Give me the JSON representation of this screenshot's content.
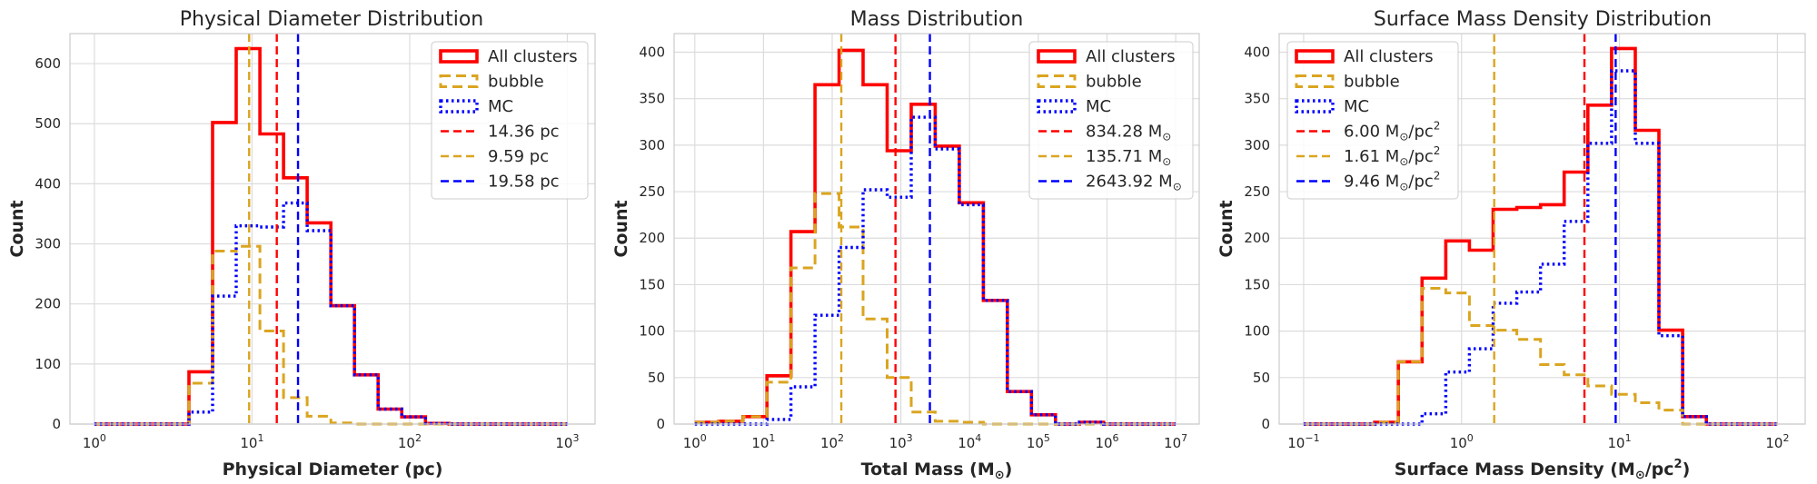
{
  "colors": {
    "all": "#ff0000",
    "bubble": "#daa520",
    "mc": "#0000ff",
    "grid": "#dcdcdc",
    "frame": "#cccccc",
    "text": "#262626"
  },
  "chart_data": [
    {
      "type": "histogram",
      "title": "Physical Diameter Distribution",
      "xlabel": "Physical Diameter (pc)",
      "ylabel": "Count",
      "xscale": "log",
      "xlim": [
        0.7,
        1500
      ],
      "ylim": [
        0,
        650
      ],
      "grid": true,
      "legend_position": "top-right",
      "x_ticks": [
        {
          "base": "10",
          "exp": "0",
          "value": 1
        },
        {
          "base": "10",
          "exp": "1",
          "value": 10
        },
        {
          "base": "10",
          "exp": "2",
          "value": 100
        },
        {
          "base": "10",
          "exp": "3",
          "value": 1000
        }
      ],
      "y_ticks": [
        {
          "label": "0",
          "value": 0
        },
        {
          "label": "100",
          "value": 100
        },
        {
          "label": "200",
          "value": 200
        },
        {
          "label": "300",
          "value": 300
        },
        {
          "label": "400",
          "value": 400
        },
        {
          "label": "500",
          "value": 500
        },
        {
          "label": "600",
          "value": 600
        }
      ],
      "bin_edges": [
        1,
        1.4125,
        1.9953,
        2.8184,
        3.9811,
        5.6234,
        7.9433,
        11.2202,
        15.8489,
        22.3872,
        31.6228,
        44.6684,
        63.0957,
        89.1251,
        125.8925,
        177.8279,
        251.1886,
        354.8134,
        501.1872,
        707.9458,
        1000
      ],
      "series": [
        {
          "name": "All clusters",
          "style": "solid",
          "counts": [
            0,
            0,
            0,
            0,
            87,
            502,
            625,
            483,
            410,
            335,
            197,
            82,
            25,
            12,
            1,
            0,
            0,
            0,
            0,
            0
          ]
        },
        {
          "name": "bubble",
          "style": "dashed",
          "counts": [
            0,
            0,
            0,
            0,
            68,
            288,
            296,
            155,
            44,
            13,
            2,
            0,
            0,
            0,
            0,
            0,
            0,
            0,
            0,
            0
          ]
        },
        {
          "name": "MC",
          "style": "dotted",
          "counts": [
            0,
            0,
            0,
            0,
            20,
            213,
            330,
            328,
            368,
            322,
            197,
            82,
            25,
            12,
            1,
            0,
            0,
            0,
            0,
            0
          ]
        }
      ],
      "vlines": [
        {
          "name": "14.36 pc",
          "value": 14.36,
          "color": "#ff0000"
        },
        {
          "name": "9.59 pc",
          "value": 9.59,
          "color": "#daa520"
        },
        {
          "name": "19.58 pc",
          "value": 19.58,
          "color": "#0000ff"
        }
      ],
      "legend": [
        {
          "kind": "patch",
          "style": "solid",
          "color": "#ff0000",
          "label": "All clusters"
        },
        {
          "kind": "patch",
          "style": "dashed",
          "color": "#daa520",
          "label": "bubble"
        },
        {
          "kind": "patch",
          "style": "dotted",
          "color": "#0000ff",
          "label": "MC"
        },
        {
          "kind": "line",
          "color": "#ff0000",
          "label": "14.36 pc"
        },
        {
          "kind": "line",
          "color": "#daa520",
          "label": "9.59 pc"
        },
        {
          "kind": "line",
          "color": "#0000ff",
          "label": "19.58 pc"
        }
      ]
    },
    {
      "type": "histogram",
      "title": "Mass Distribution",
      "xlabel": "Total Mass (M",
      "xlabel_sub": "⊙",
      "xlabel_end": ")",
      "ylabel": "Count",
      "xscale": "log",
      "xlim": [
        0.5,
        22000000.0
      ],
      "ylim": [
        0,
        420
      ],
      "grid": true,
      "legend_position": "top-right",
      "x_ticks": [
        {
          "base": "10",
          "exp": "0",
          "value": 1
        },
        {
          "base": "10",
          "exp": "1",
          "value": 10
        },
        {
          "base": "10",
          "exp": "2",
          "value": 100
        },
        {
          "base": "10",
          "exp": "3",
          "value": 1000
        },
        {
          "base": "10",
          "exp": "4",
          "value": 10000
        },
        {
          "base": "10",
          "exp": "5",
          "value": 100000
        },
        {
          "base": "10",
          "exp": "6",
          "value": 1000000
        },
        {
          "base": "10",
          "exp": "7",
          "value": 10000000
        }
      ],
      "y_ticks": [
        {
          "label": "0",
          "value": 0
        },
        {
          "label": "50",
          "value": 50
        },
        {
          "label": "100",
          "value": 100
        },
        {
          "label": "150",
          "value": 150
        },
        {
          "label": "200",
          "value": 200
        },
        {
          "label": "250",
          "value": 250
        },
        {
          "label": "300",
          "value": 300
        },
        {
          "label": "350",
          "value": 350
        },
        {
          "label": "400",
          "value": 400
        }
      ],
      "bin_edges": [
        1,
        2.2387,
        5.0119,
        11.2202,
        25.1189,
        56.2341,
        125.8925,
        281.8383,
        630.9573,
        1412.5375,
        3162.2777,
        7079.4578,
        15848.9319,
        35481.3389,
        79432.8235,
        177827.941,
        398107.1706,
        891250.9381,
        1995262.315,
        4466835.922,
        10000000
      ],
      "series": [
        {
          "name": "All clusters",
          "style": "solid",
          "counts": [
            2,
            3,
            8,
            52,
            207,
            365,
            402,
            365,
            294,
            344,
            299,
            238,
            133,
            35,
            10,
            0,
            2,
            0,
            0,
            0
          ]
        },
        {
          "name": "bubble",
          "style": "dashed",
          "counts": [
            2,
            3,
            8,
            45,
            168,
            248,
            212,
            113,
            50,
            13,
            3,
            2,
            0,
            0,
            0,
            0,
            0,
            0,
            0,
            0
          ]
        },
        {
          "name": "MC",
          "style": "dotted",
          "counts": [
            0,
            0,
            0,
            5,
            40,
            117,
            190,
            252,
            244,
            330,
            296,
            236,
            133,
            35,
            10,
            0,
            2,
            0,
            0,
            0
          ]
        }
      ],
      "vlines": [
        {
          "name": "834.28 M⊙",
          "value": 834.28,
          "color": "#ff0000"
        },
        {
          "name": "135.71 M⊙",
          "value": 135.71,
          "color": "#daa520"
        },
        {
          "name": "2643.92 M⊙",
          "value": 2643.92,
          "color": "#0000ff"
        }
      ],
      "legend": [
        {
          "kind": "patch",
          "style": "solid",
          "color": "#ff0000",
          "label": "All clusters"
        },
        {
          "kind": "patch",
          "style": "dashed",
          "color": "#daa520",
          "label": "bubble"
        },
        {
          "kind": "patch",
          "style": "dotted",
          "color": "#0000ff",
          "label": "MC"
        },
        {
          "kind": "line",
          "color": "#ff0000",
          "label": "834.28 M",
          "sub": "⊙"
        },
        {
          "kind": "line",
          "color": "#daa520",
          "label": "135.71 M",
          "sub": "⊙"
        },
        {
          "kind": "line",
          "color": "#0000ff",
          "label": "2643.92 M",
          "sub": "⊙"
        }
      ]
    },
    {
      "type": "histogram",
      "title": "Surface Mass Density Distribution",
      "xlabel": "Surface Mass Density (M",
      "xlabel_sub": "⊙",
      "xlabel_end": "/pc",
      "xlabel_sup": "2",
      "xlabel_close": ")",
      "ylabel": "Count",
      "xscale": "log",
      "xlim": [
        0.07,
        150
      ],
      "ylim": [
        0,
        420
      ],
      "grid": true,
      "legend_position": "top-left",
      "x_ticks": [
        {
          "base": "10",
          "exp": "−1",
          "value": 0.1
        },
        {
          "base": "10",
          "exp": "0",
          "value": 1
        },
        {
          "base": "10",
          "exp": "1",
          "value": 10
        },
        {
          "base": "10",
          "exp": "2",
          "value": 100
        }
      ],
      "y_ticks": [
        {
          "label": "0",
          "value": 0
        },
        {
          "label": "50",
          "value": 50
        },
        {
          "label": "100",
          "value": 100
        },
        {
          "label": "150",
          "value": 150
        },
        {
          "label": "200",
          "value": 200
        },
        {
          "label": "250",
          "value": 250
        },
        {
          "label": "300",
          "value": 300
        },
        {
          "label": "350",
          "value": 350
        },
        {
          "label": "400",
          "value": 400
        }
      ],
      "bin_edges": [
        0.1,
        0.1413,
        0.1995,
        0.2818,
        0.3981,
        0.5623,
        0.7943,
        1.122,
        1.5849,
        2.2387,
        3.1623,
        4.4668,
        6.3096,
        8.9125,
        12.5893,
        17.7828,
        25.1189,
        35.4813,
        50.1187,
        70.7946,
        100
      ],
      "series": [
        {
          "name": "All clusters",
          "style": "solid",
          "counts": [
            0,
            0,
            0,
            2,
            67,
            157,
            197,
            187,
            231,
            233,
            236,
            271,
            343,
            404,
            316,
            101,
            8,
            0,
            0,
            0
          ]
        },
        {
          "name": "bubble",
          "style": "dashed",
          "counts": [
            0,
            0,
            0,
            2,
            67,
            146,
            141,
            106,
            101,
            91,
            64,
            53,
            41,
            32,
            23,
            15,
            0,
            0,
            0,
            0
          ]
        },
        {
          "name": "MC",
          "style": "dotted",
          "counts": [
            0,
            0,
            0,
            0,
            0,
            11,
            56,
            81,
            130,
            142,
            172,
            218,
            302,
            380,
            302,
            95,
            8,
            0,
            0,
            0
          ]
        }
      ],
      "vlines": [
        {
          "name": "6.00 M⊙/pc2",
          "value": 6.0,
          "color": "#ff0000"
        },
        {
          "name": "1.61 M⊙/pc2",
          "value": 1.61,
          "color": "#daa520"
        },
        {
          "name": "9.46 M⊙/pc2",
          "value": 9.46,
          "color": "#0000ff"
        }
      ],
      "legend": [
        {
          "kind": "patch",
          "style": "solid",
          "color": "#ff0000",
          "label": "All clusters"
        },
        {
          "kind": "patch",
          "style": "dashed",
          "color": "#daa520",
          "label": "bubble"
        },
        {
          "kind": "patch",
          "style": "dotted",
          "color": "#0000ff",
          "label": "MC"
        },
        {
          "kind": "line",
          "color": "#ff0000",
          "label": "6.00 M",
          "sub": "⊙",
          "tail": "/pc",
          "sup": "2"
        },
        {
          "kind": "line",
          "color": "#daa520",
          "label": "1.61 M",
          "sub": "⊙",
          "tail": "/pc",
          "sup": "2"
        },
        {
          "kind": "line",
          "color": "#0000ff",
          "label": "9.46 M",
          "sub": "⊙",
          "tail": "/pc",
          "sup": "2"
        }
      ]
    }
  ]
}
